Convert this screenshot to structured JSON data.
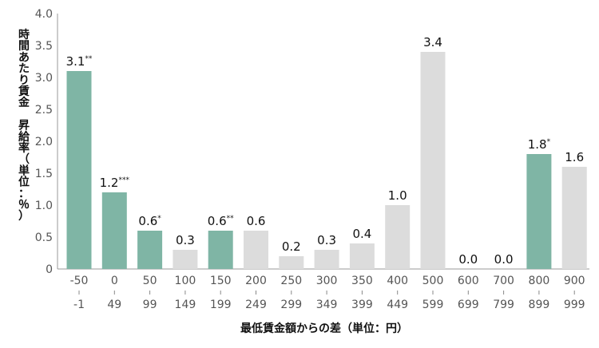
{
  "chart_data": {
    "type": "bar",
    "title": "",
    "xlabel": "最低賃金額からの差（単位：円）",
    "ylabel": "時間あたり賃金 昇給率（単位：％）",
    "ylim": [
      0,
      4.0
    ],
    "yticks": [
      "0",
      "0.5",
      "1.0",
      "1.5",
      "2.0",
      "2.5",
      "3.0",
      "3.5",
      "4.0"
    ],
    "grid": false,
    "legend": "none",
    "categories": [
      {
        "top": "-50",
        "bottom": "-1"
      },
      {
        "top": "0",
        "bottom": "49"
      },
      {
        "top": "50",
        "bottom": "99"
      },
      {
        "top": "100",
        "bottom": "149"
      },
      {
        "top": "150",
        "bottom": "199"
      },
      {
        "top": "200",
        "bottom": "249"
      },
      {
        "top": "250",
        "bottom": "299"
      },
      {
        "top": "300",
        "bottom": "349"
      },
      {
        "top": "350",
        "bottom": "399"
      },
      {
        "top": "400",
        "bottom": "449"
      },
      {
        "top": "500",
        "bottom": "599"
      },
      {
        "top": "600",
        "bottom": "699"
      },
      {
        "top": "700",
        "bottom": "799"
      },
      {
        "top": "800",
        "bottom": "899"
      },
      {
        "top": "900",
        "bottom": "999"
      }
    ],
    "values": [
      3.1,
      1.2,
      0.6,
      0.3,
      0.6,
      0.6,
      0.2,
      0.3,
      0.4,
      1.0,
      3.4,
      0.0,
      0.0,
      1.8,
      1.6
    ],
    "labels": [
      "3.1",
      "1.2",
      "0.6",
      "0.3",
      "0.6",
      "0.6",
      "0.2",
      "0.3",
      "0.4",
      "1.0",
      "3.4",
      "0.0",
      "0.0",
      "1.8",
      "1.6"
    ],
    "significance": [
      "**",
      "***",
      "*",
      "",
      "**",
      "",
      "",
      "",
      "",
      "",
      "",
      "",
      "",
      "*",
      ""
    ],
    "highlighted": [
      true,
      true,
      true,
      false,
      true,
      false,
      false,
      false,
      false,
      false,
      false,
      false,
      false,
      true,
      false
    ],
    "colors": {
      "highlight": "#7fb5a5",
      "normal": "#dcdcdc",
      "axis": "#999999"
    }
  }
}
